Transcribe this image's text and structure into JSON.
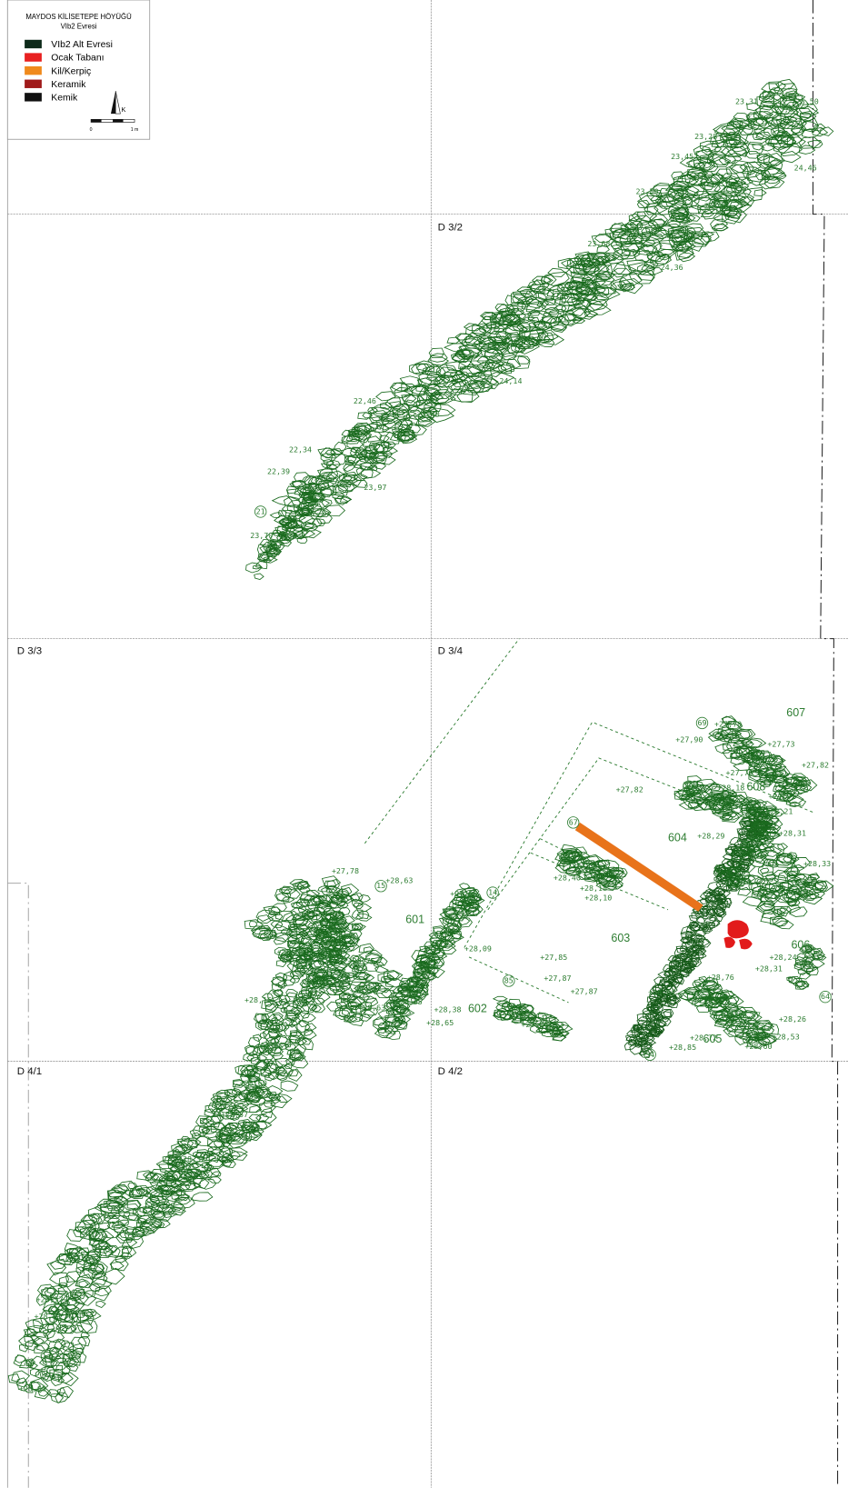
{
  "legend": {
    "title": "MAYDOS KİLİSETEPE HÖYÜĞÜ",
    "subtitle": "VIb2 Evresi",
    "items": [
      "VIb2 Alt Evresi",
      "Ocak Tabanı",
      "Kil/Kerpiç",
      "Keramik",
      "Kemik"
    ],
    "north": "K",
    "scale_start": "0",
    "scale_end": "1 m"
  },
  "grid_labels": [
    "D 3/2",
    "D 3/3",
    "D 3/4",
    "D 4/1",
    "D 4/2"
  ],
  "elevations": [
    "23,31",
    "25,50",
    "23,67",
    "23,28",
    "23,45",
    "24,46",
    "23,50",
    "24,00",
    "23,68",
    "24,36",
    "24,14",
    "22,46",
    "23,40",
    "22,34",
    "22,39",
    "23,97",
    "23,70",
    "+27,70",
    "+27,90",
    "+27,73",
    "+27,82",
    "+27,79",
    "+28,18",
    "+27,91",
    "+27,82",
    "+28,21",
    "+28,29",
    "+28,31",
    "+28,33",
    "+28,40",
    "+28,18",
    "+28,10",
    "+27,78",
    "+27,88",
    "+28,63",
    "+27,88",
    "+28,09",
    "+27,85",
    "+27,87",
    "+28,75",
    "+28,24",
    "+28,31",
    "+28,61",
    "+28,76",
    "+28,35",
    "+28,75",
    "+28,63",
    "+28,38",
    "+28,65",
    "+27,87",
    "+27,86",
    "+28,57",
    "+28,26",
    "+28,72",
    "+28,85",
    "+28,60",
    "+28,53",
    "+28,16",
    "+28,85",
    "+28,60",
    "+28,57",
    "+28,32",
    "+28,57",
    "+28,81",
    "+28,00"
  ],
  "spaces": [
    "607",
    "608",
    "604",
    "601",
    "603",
    "606",
    "602",
    "605"
  ],
  "features": [
    "21",
    "69",
    "78",
    "67",
    "14",
    "15",
    "85",
    "54",
    "73",
    "64"
  ]
}
